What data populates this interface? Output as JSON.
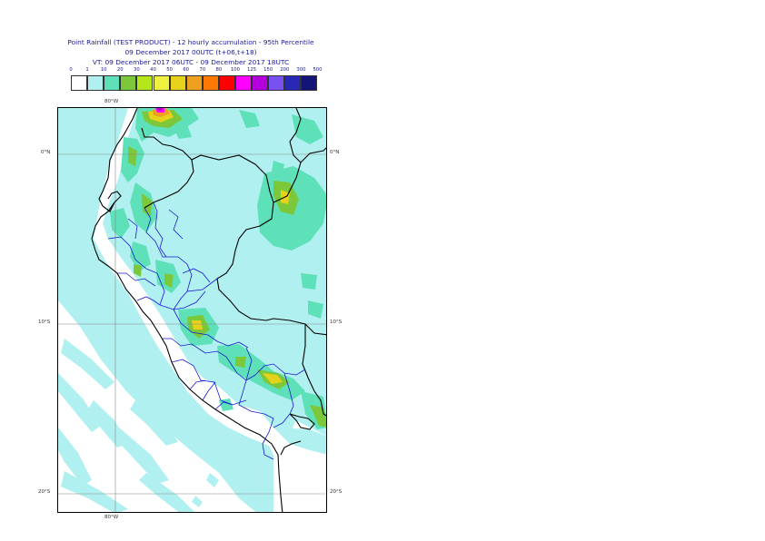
{
  "header": {
    "title": "Point Rainfall (TEST PRODUCT) - 12 hourly accumulation - 95th Percentile",
    "base_time": "09 December 2017 00UTC (t+06,t+18)",
    "valid_time": "VT: 09 December 2017 06UTC - 09 December 2017 18UTC"
  },
  "legend": {
    "ticks": [
      "0",
      "1",
      "10",
      "20",
      "30",
      "40",
      "50",
      "60",
      "70",
      "80",
      "100",
      "125",
      "150",
      "200",
      "300",
      "500"
    ],
    "colors": [
      "#ffffff",
      "#b0f0f0",
      "#5ee0b8",
      "#7cc83a",
      "#b4e61a",
      "#f0f040",
      "#e6d21a",
      "#f0a020",
      "#ff7800",
      "#ff0000",
      "#ff00ff",
      "#b400dc",
      "#7850f0",
      "#2828b4",
      "#141478"
    ]
  },
  "axes": {
    "lon_top": "80°W",
    "lon_bottom": "80°W",
    "lat_labels": [
      "0°N",
      "10°S",
      "20°S"
    ]
  },
  "map": {
    "region": "Peru",
    "lon_range": [
      "-85.0",
      "-69.0"
    ],
    "lat_range": [
      "3.0",
      "-21.0"
    ]
  }
}
